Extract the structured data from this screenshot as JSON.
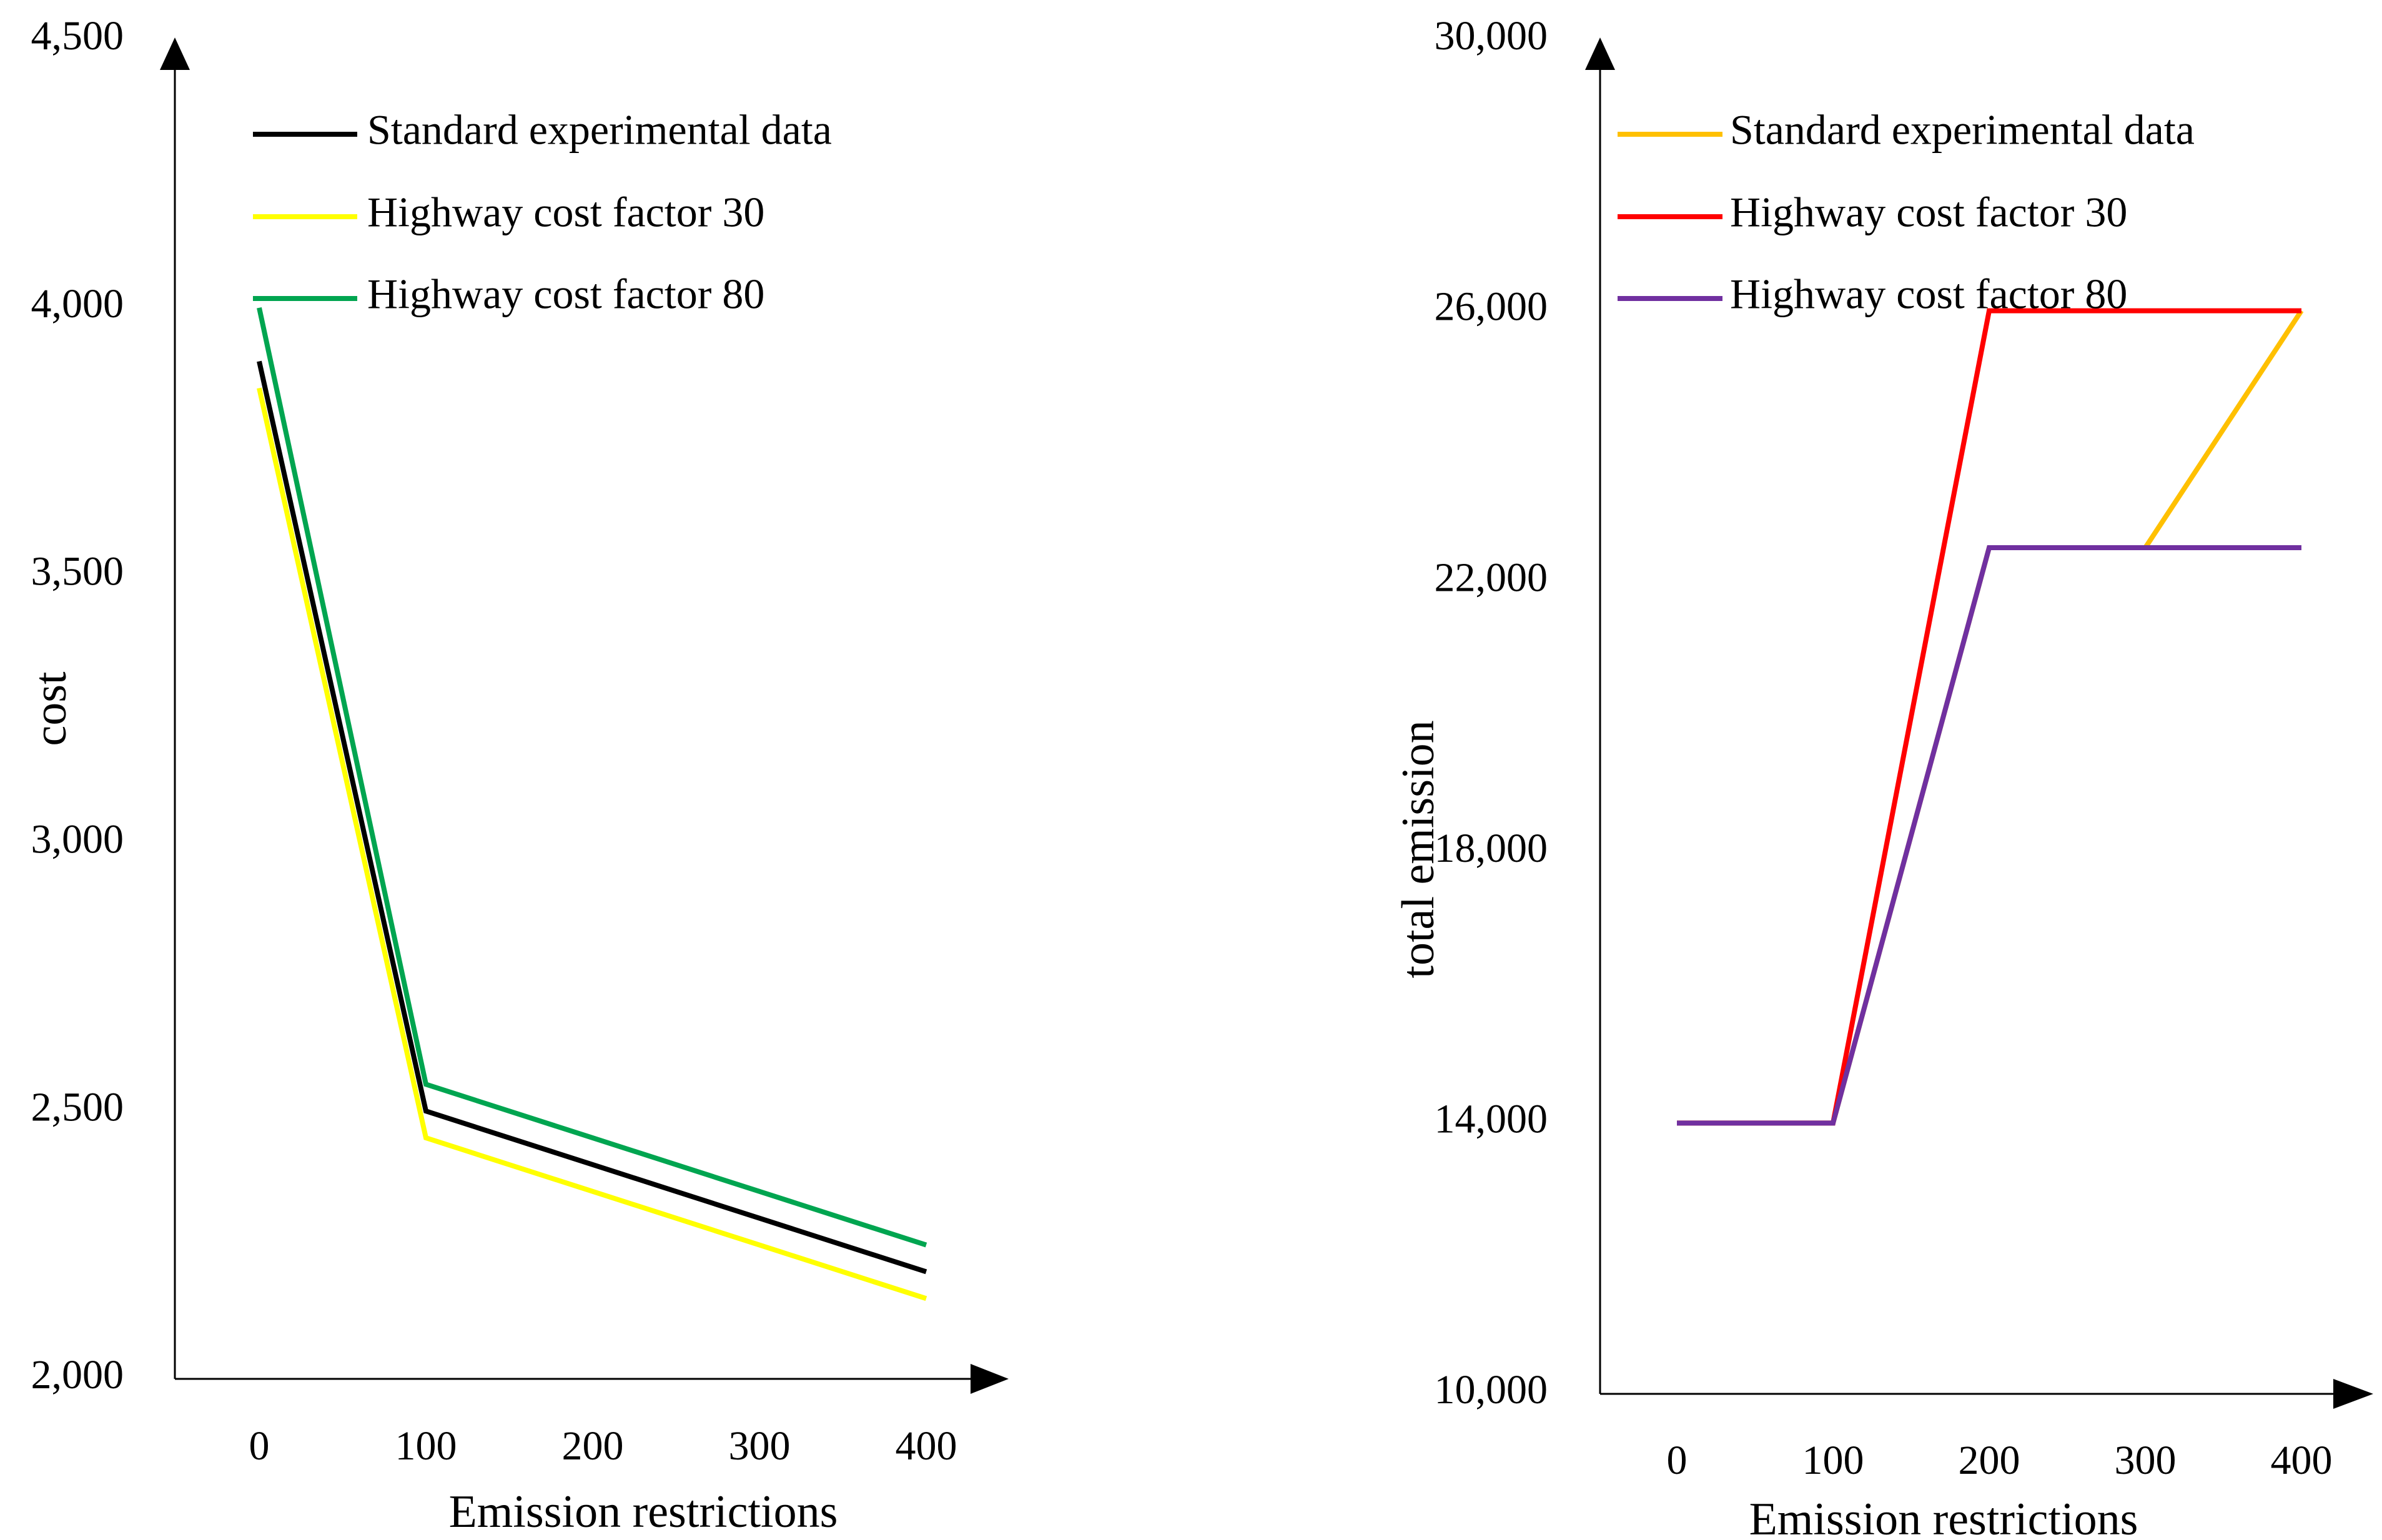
{
  "chart_data": [
    {
      "type": "line",
      "title": "",
      "xlabel": "Emission restrictions",
      "ylabel": "cost",
      "categories": [
        "0",
        "100",
        "200",
        "300",
        "400"
      ],
      "x": [
        0,
        100,
        200,
        300,
        400
      ],
      "ylim": [
        2000,
        4500
      ],
      "yticks": [
        2000,
        2500,
        3000,
        3500,
        4000,
        4500
      ],
      "ytick_labels": [
        "2,000",
        "2,500",
        "3,000",
        "3,500",
        "4,000",
        "4,500"
      ],
      "grid": false,
      "legend_position": "top-left",
      "series": [
        {
          "name": "Standard experimental data",
          "color": "#000000",
          "values": [
            3900,
            2500,
            2400,
            2300,
            2200
          ]
        },
        {
          "name": "Highway cost factor 30",
          "color": "#FFFF00",
          "values": [
            3850,
            2450,
            2350,
            2250,
            2150
          ]
        },
        {
          "name": "Highway cost factor 80",
          "color": "#00A550",
          "values": [
            4000,
            2550,
            2450,
            2350,
            2250
          ]
        }
      ]
    },
    {
      "type": "line",
      "title": "",
      "xlabel": "Emission restrictions",
      "ylabel": "total emission",
      "categories": [
        "0",
        "100",
        "200",
        "300",
        "400"
      ],
      "x": [
        0,
        100,
        200,
        300,
        400
      ],
      "ylim": [
        10000,
        30000
      ],
      "yticks": [
        10000,
        14000,
        18000,
        22000,
        26000,
        30000
      ],
      "ytick_labels": [
        "10,000",
        "14,000",
        "18,000",
        "22,000",
        "26,000",
        "30,000"
      ],
      "grid": false,
      "legend_position": "top-left",
      "series": [
        {
          "name": "Standard experimental data",
          "color": "#FFC000",
          "values": [
            14000,
            14000,
            22500,
            22500,
            26000
          ]
        },
        {
          "name": "Highway cost factor 30",
          "color": "#FF0000",
          "values": [
            14000,
            14000,
            26000,
            26000,
            26000
          ]
        },
        {
          "name": "Highway cost factor 80",
          "color": "#7030A0",
          "values": [
            14000,
            14000,
            22500,
            22500,
            22500
          ]
        }
      ]
    }
  ]
}
